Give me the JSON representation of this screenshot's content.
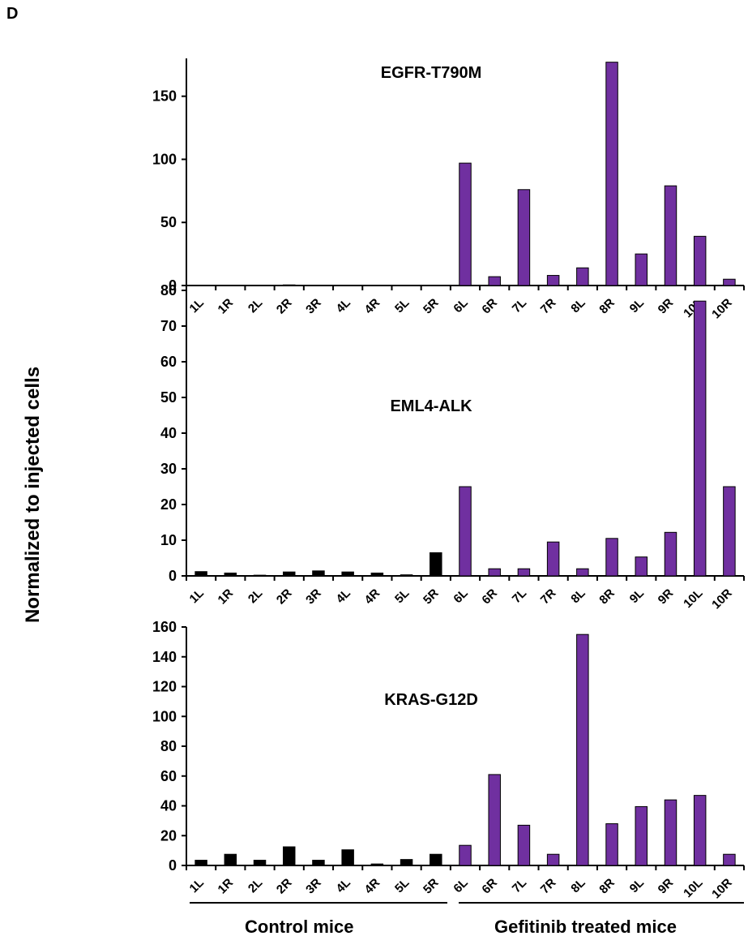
{
  "panel_letter": "D",
  "shared_ylabel": "Normalized to injected cells",
  "groups": [
    {
      "label": "Control mice"
    },
    {
      "label": "Gefitinib treated mice"
    }
  ],
  "colors": {
    "control": "#000000",
    "treated": "#7030a0",
    "axis": "#000000"
  },
  "chart_data": [
    {
      "type": "bar",
      "title": "EGFR-T790M",
      "categories": [
        "1L",
        "1R",
        "2L",
        "2R",
        "3R",
        "4L",
        "4R",
        "5L",
        "5R",
        "6L",
        "6R",
        "7L",
        "7R",
        "8L",
        "8R",
        "9L",
        "9R",
        "10L",
        "10R"
      ],
      "values": [
        0.2,
        0.2,
        0.2,
        0.5,
        0.3,
        0.2,
        0.2,
        0.2,
        0.2,
        97,
        7,
        76,
        8,
        14,
        177,
        25,
        79,
        39,
        5
      ],
      "ylim": [
        0,
        180
      ],
      "yticks": [
        0,
        50,
        100,
        150
      ],
      "xlabel": "",
      "ylabel": ""
    },
    {
      "type": "bar",
      "title": "EML4-ALK",
      "categories": [
        "1L",
        "1R",
        "2L",
        "2R",
        "3R",
        "4L",
        "4R",
        "5L",
        "5R",
        "6L",
        "6R",
        "7L",
        "7R",
        "8L",
        "8R",
        "9L",
        "9R",
        "10L",
        "10R"
      ],
      "values": [
        1.2,
        0.8,
        0.2,
        1.1,
        1.4,
        1.1,
        0.8,
        0.3,
        6.5,
        25,
        2,
        2,
        9.5,
        2,
        10.5,
        5.3,
        12.2,
        77,
        25
      ],
      "ylim": [
        0,
        80
      ],
      "yticks": [
        0,
        10,
        20,
        30,
        40,
        50,
        60,
        70,
        80
      ],
      "xlabel": "",
      "ylabel": ""
    },
    {
      "type": "bar",
      "title": "KRAS-G12D",
      "categories": [
        "1L",
        "1R",
        "2L",
        "2R",
        "3R",
        "4L",
        "4R",
        "5L",
        "5R",
        "6L",
        "6R",
        "7L",
        "7R",
        "8L",
        "8R",
        "9L",
        "9R",
        "10L",
        "10R"
      ],
      "values": [
        3.5,
        7.5,
        3.5,
        12.5,
        3.5,
        10.5,
        1,
        4,
        7.5,
        13.5,
        61,
        27,
        7.5,
        155,
        28,
        39.5,
        44,
        47,
        7.5
      ],
      "ylim": [
        0,
        160
      ],
      "yticks": [
        0,
        20,
        40,
        60,
        80,
        100,
        120,
        140,
        160
      ],
      "xlabel": "",
      "ylabel": ""
    }
  ]
}
